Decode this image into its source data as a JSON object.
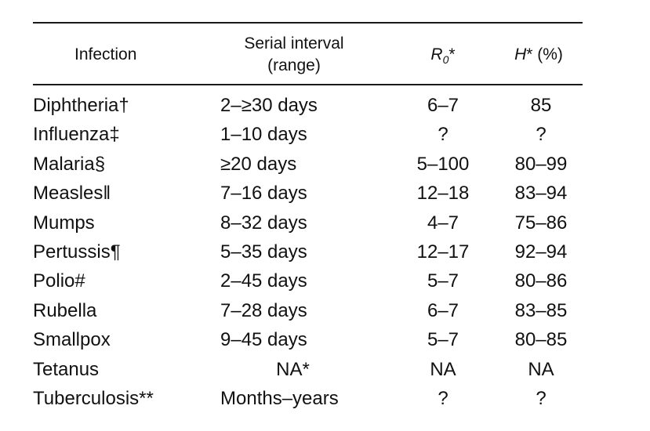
{
  "header": {
    "infection": "Infection",
    "serial_line1": "Serial interval",
    "serial_line2": "(range)",
    "r0_main": "R",
    "r0_sub": "0",
    "r0_mark": "*",
    "h_main": "H",
    "h_rest": "* (%)"
  },
  "rows": [
    {
      "name": "Diphtheria†",
      "serial": "2–≥30 days",
      "r0": "6–7",
      "h": "85"
    },
    {
      "name": "Influenza‡",
      "serial": "1–10 days",
      "r0": "?",
      "h": "?"
    },
    {
      "name": "Malaria§",
      "serial": "≥20 days",
      "r0": "5–100",
      "h": "80–99"
    },
    {
      "name": "Measles‖",
      "serial": "7–16 days",
      "r0": "12–18",
      "h": "83–94"
    },
    {
      "name": "Mumps",
      "serial": "8–32 days",
      "r0": "4–7",
      "h": "75–86"
    },
    {
      "name": "Pertussis¶",
      "serial": "5–35 days",
      "r0": "12–17",
      "h": "92–94"
    },
    {
      "name": "Polio#",
      "serial": "2–45 days",
      "r0": "5–7",
      "h": "80–86"
    },
    {
      "name": "Rubella",
      "serial": "7–28 days",
      "r0": "6–7",
      "h": "83–85"
    },
    {
      "name": "Smallpox",
      "serial": "9–45 days",
      "r0": "5–7",
      "h": "80–85"
    },
    {
      "name": "Tetanus",
      "serial": "NA*",
      "r0": "NA",
      "h": "NA"
    },
    {
      "name": "Tuberculosis**",
      "serial": "Months–years",
      "r0": "?",
      "h": "?"
    }
  ]
}
